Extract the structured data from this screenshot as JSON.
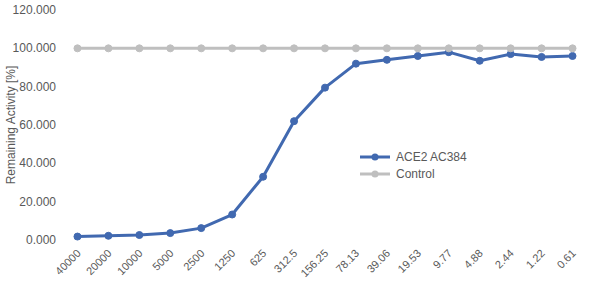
{
  "chart_data": {
    "type": "line",
    "y_label": "Remaining Activity [%]",
    "categories": [
      "40000",
      "20000",
      "10000",
      "5000",
      "2500",
      "1250",
      "625",
      "312.5",
      "156.25",
      "78.13",
      "39.06",
      "19.53",
      "9.77",
      "4.88",
      "2.44",
      "1.22",
      "0.61"
    ],
    "series": [
      {
        "name": "ACE2 AC384",
        "color": "#4169b0",
        "marker": "circle",
        "values": [
          1.8,
          2.2,
          2.6,
          3.6,
          6.2,
          13.3,
          33.0,
          62.0,
          79.5,
          92.0,
          94.0,
          96.0,
          98.0,
          93.5,
          97.0,
          95.5,
          96.0
        ]
      },
      {
        "name": "Control",
        "color": "#bfbfbf",
        "marker": "circle",
        "values": [
          100,
          100,
          100,
          100,
          100,
          100,
          100,
          100,
          100,
          100,
          100,
          100,
          100,
          100,
          100,
          100,
          100
        ]
      }
    ],
    "ylim": [
      0,
      120
    ],
    "yticks": [
      {
        "value": 0,
        "label": "0.000"
      },
      {
        "value": 20,
        "label": "20.000"
      },
      {
        "value": 40,
        "label": "40.000"
      },
      {
        "value": 60,
        "label": "60.000"
      },
      {
        "value": 80,
        "label": "80.000"
      },
      {
        "value": 100,
        "label": "100.000"
      },
      {
        "value": 120,
        "label": "120.000"
      }
    ],
    "grid": false,
    "legend": "right"
  }
}
